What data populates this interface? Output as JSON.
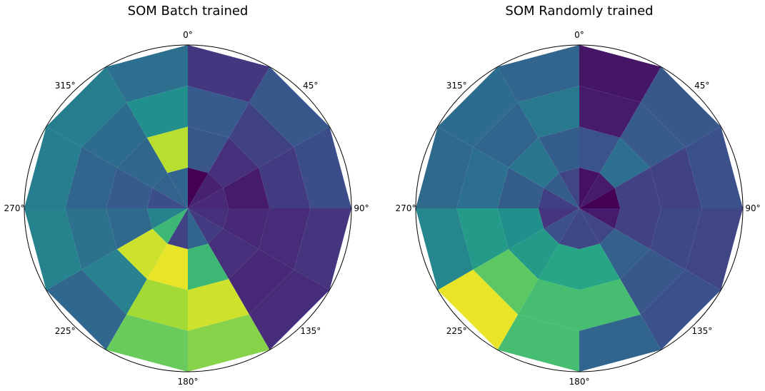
{
  "chart_data": [
    {
      "type": "heatmap",
      "title": "SOM Batch trained",
      "projection": "polar",
      "theta_direction": "clockwise",
      "theta_zero": "top",
      "theta_tick_labels": [
        "0°",
        "45°",
        "90°",
        "135°",
        "180°",
        "225°",
        "270°",
        "315°"
      ],
      "radial_tick_labels": [],
      "grid": false,
      "n_sectors": 12,
      "n_rings": 4,
      "value_range": [
        0,
        1
      ],
      "colormap": "viridis",
      "values": [
        [
          0.0,
          0.27,
          0.29,
          0.17
        ],
        [
          0.1,
          0.14,
          0.2,
          0.28
        ],
        [
          0.12,
          0.08,
          0.18,
          0.24
        ],
        [
          0.14,
          0.12,
          0.13,
          0.16
        ],
        [
          0.18,
          0.14,
          0.12,
          0.13
        ],
        [
          0.33,
          0.68,
          0.93,
          0.82
        ],
        [
          0.2,
          0.97,
          0.87,
          0.77
        ],
        [
          0.68,
          0.93,
          0.44,
          0.34
        ],
        [
          0.45,
          0.35,
          0.38,
          0.45
        ],
        [
          0.24,
          0.29,
          0.33,
          0.43
        ],
        [
          0.32,
          0.34,
          0.36,
          0.43
        ],
        [
          0.33,
          0.9,
          0.5,
          0.37
        ]
      ]
    },
    {
      "type": "heatmap",
      "title": "SOM Randomly trained",
      "projection": "polar",
      "theta_direction": "clockwise",
      "theta_zero": "top",
      "theta_tick_labels": [
        "0°",
        "45°",
        "90°",
        "135°",
        "180°",
        "225°",
        "270°",
        "315°"
      ],
      "radial_tick_labels": [],
      "grid": false,
      "n_sectors": 12,
      "n_rings": 4,
      "value_range": [
        0,
        1
      ],
      "colormap": "viridis",
      "values": [
        [
          0.05,
          0.26,
          0.08,
          0.06
        ],
        [
          0.08,
          0.37,
          0.29,
          0.28
        ],
        [
          0.0,
          0.2,
          0.2,
          0.25
        ],
        [
          0.08,
          0.2,
          0.22,
          0.21
        ],
        [
          0.21,
          0.31,
          0.28,
          0.25
        ],
        [
          0.22,
          0.6,
          0.7,
          0.33
        ],
        [
          0.22,
          0.6,
          0.7,
          0.7
        ],
        [
          0.25,
          0.55,
          0.75,
          0.97
        ],
        [
          0.16,
          0.5,
          0.55,
          0.46
        ],
        [
          0.19,
          0.3,
          0.37,
          0.35
        ],
        [
          0.3,
          0.4,
          0.33,
          0.36
        ],
        [
          0.21,
          0.3,
          0.41,
          0.33
        ]
      ]
    }
  ]
}
